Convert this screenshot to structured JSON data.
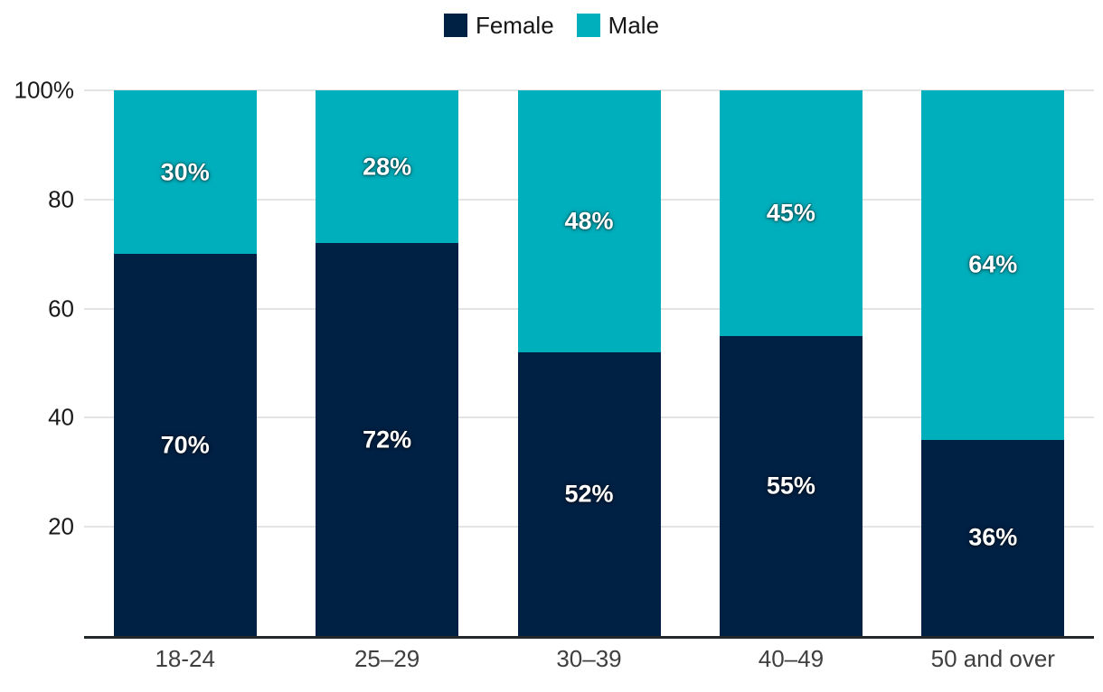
{
  "chart_data": {
    "type": "bar",
    "stacked": true,
    "title": "",
    "categories": [
      "18-24",
      "25–29",
      "30–39",
      "40–49",
      "50 and over"
    ],
    "series": [
      {
        "name": "Female",
        "color": "#012144",
        "values": [
          70,
          72,
          52,
          55,
          36
        ],
        "labels": [
          "70%",
          "72%",
          "52%",
          "55%",
          "36%"
        ]
      },
      {
        "name": "Male",
        "color": "#00afbc",
        "values": [
          30,
          28,
          48,
          45,
          64
        ],
        "labels": [
          "30%",
          "28%",
          "48%",
          "45%",
          "64%"
        ]
      }
    ],
    "y_ticks": [
      {
        "value": 20,
        "label": "20"
      },
      {
        "value": 40,
        "label": "40"
      },
      {
        "value": 60,
        "label": "60"
      },
      {
        "value": 80,
        "label": "80"
      },
      {
        "value": 100,
        "label": "100%"
      }
    ],
    "ylim": [
      0,
      100
    ],
    "grid": true,
    "legend_position": "top-center"
  },
  "colors": {
    "background": "#ffffff",
    "grid": "#e4e4e4",
    "axis": "#22272a",
    "y_tick_text": "#1a1a1a",
    "x_label_text": "#3f3f3f",
    "legend_text": "#161616",
    "bar_label_text": "#ffffff"
  }
}
